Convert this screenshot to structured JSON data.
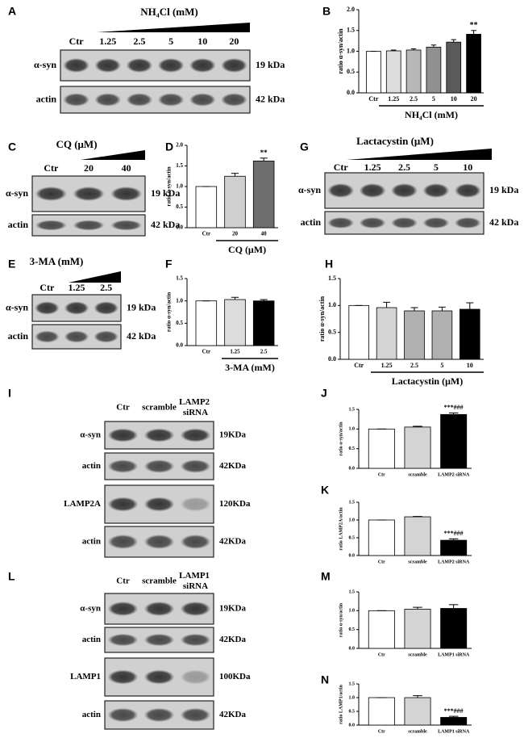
{
  "chart_data": [
    {
      "type": "bar",
      "panel": "B",
      "ylabel": "ratio α-syn/actin",
      "xlabel": "NH₄Cl (mM)",
      "categories": [
        "Ctr",
        "1.25",
        "2.5",
        "5",
        "10",
        "20"
      ],
      "values": [
        1.0,
        1.01,
        1.03,
        1.1,
        1.22,
        1.41
      ],
      "errors": [
        0,
        0.02,
        0.03,
        0.05,
        0.06,
        0.09
      ],
      "colors": [
        "#ffffff",
        "#dcdcdc",
        "#b8b8b8",
        "#909090",
        "#5a5a5a",
        "#000000"
      ],
      "annotation": "**",
      "ylim": [
        0,
        2
      ],
      "yticks": [
        {
          "value": 0,
          "label": "0.0"
        },
        0.5,
        {
          "value": 1,
          "label": "1.0"
        },
        1.5,
        {
          "value": 2,
          "label": "2.0"
        }
      ]
    },
    {
      "type": "bar",
      "panel": "D",
      "ylabel": "ratio α-syn/actin",
      "xlabel": "CQ (μM)",
      "categories": [
        "Ctr",
        "20",
        "40"
      ],
      "values": [
        1.0,
        1.25,
        1.62
      ],
      "errors": [
        0,
        0.07,
        0.07
      ],
      "colors": [
        "#ffffff",
        "#cfcfcf",
        "#6e6e6e"
      ],
      "annotation": "**",
      "ylim": [
        0,
        2
      ],
      "yticks": [
        {
          "value": 0,
          "label": "0.0"
        },
        0.5,
        {
          "value": 1,
          "label": "1.0"
        },
        1.5,
        {
          "value": 2,
          "label": "2.0"
        }
      ]
    },
    {
      "type": "bar",
      "panel": "F",
      "ylabel": "ratio α-syn/actin",
      "xlabel": "3-MA (mM)",
      "categories": [
        "Ctr",
        "1.25",
        "2.5"
      ],
      "values": [
        1.0,
        1.03,
        1.0
      ],
      "errors": [
        0,
        0.05,
        0.03
      ],
      "colors": [
        "#ffffff",
        "#dcdcdc",
        "#000000"
      ],
      "ylim": [
        0,
        1.5
      ],
      "yticks": [
        {
          "value": 0,
          "label": "0.0"
        },
        0.5,
        {
          "value": 1,
          "label": "1.0"
        },
        1.5
      ]
    },
    {
      "type": "bar",
      "panel": "H",
      "ylabel": "ratio α-syn/actin",
      "xlabel": "Lactacystin (μM)",
      "categories": [
        "Ctr",
        "1.25",
        "2.5",
        "5",
        "10"
      ],
      "values": [
        1.0,
        0.96,
        0.9,
        0.9,
        0.93
      ],
      "errors": [
        0,
        0.1,
        0.06,
        0.07,
        0.12
      ],
      "colors": [
        "#ffffff",
        "#d4d4d4",
        "#b0b0b0",
        "#b0b0b0",
        "#000000"
      ],
      "ylim": [
        0,
        1.5
      ],
      "yticks": [
        {
          "value": 0,
          "label": "0.0"
        },
        0.5,
        {
          "value": 1,
          "label": "1.0"
        },
        1.5
      ]
    },
    {
      "type": "bar",
      "panel": "J",
      "ylabel": "ratio α-syn/actin",
      "categories": [
        "Ctr",
        "scramble",
        "LAMP2 siRNA"
      ],
      "values": [
        1.0,
        1.05,
        1.37
      ],
      "errors": [
        0,
        0.02,
        0.04
      ],
      "colors": [
        "#ffffff",
        "#d4d4d4",
        "#000000"
      ],
      "annotation": "***###",
      "ylim": [
        0,
        1.5
      ],
      "yticks": [
        {
          "value": 0,
          "label": "0.0"
        },
        0.5,
        {
          "value": 1,
          "label": "1.0"
        },
        1.5
      ]
    },
    {
      "type": "bar",
      "panel": "K",
      "ylabel": "ratio LAMP2A/actin",
      "categories": [
        "Ctr",
        "scramble",
        "LAMP2 siRNA"
      ],
      "values": [
        1.0,
        1.09,
        0.43
      ],
      "errors": [
        0,
        0.01,
        0.04
      ],
      "colors": [
        "#ffffff",
        "#d4d4d4",
        "#000000"
      ],
      "annotation": "***###",
      "ylim": [
        0,
        1.5
      ],
      "yticks": [
        {
          "value": 0,
          "label": "0.0"
        },
        0.5,
        {
          "value": 1,
          "label": "1.0"
        },
        1.5
      ]
    },
    {
      "type": "bar",
      "panel": "M",
      "ylabel": "ratio α-syn/actin",
      "categories": [
        "Ctr",
        "scramble",
        "LAMP1 siRNA"
      ],
      "values": [
        1.0,
        1.04,
        1.06
      ],
      "errors": [
        0,
        0.05,
        0.1
      ],
      "colors": [
        "#ffffff",
        "#d4d4d4",
        "#000000"
      ],
      "ylim": [
        0,
        1.5
      ],
      "yticks": [
        {
          "value": 0,
          "label": "0.0"
        },
        0.5,
        {
          "value": 1,
          "label": "1.0"
        },
        1.5
      ]
    },
    {
      "type": "bar",
      "panel": "N",
      "ylabel": "ratio LAMP1/actin",
      "categories": [
        "Ctr",
        "scramble",
        "LAMP1 siRNA"
      ],
      "values": [
        1.0,
        1.0,
        0.28
      ],
      "errors": [
        0,
        0.07,
        0.04
      ],
      "colors": [
        "#ffffff",
        "#d4d4d4",
        "#000000"
      ],
      "annotation": "***###",
      "ylim": [
        0,
        1.5
      ],
      "yticks": [
        {
          "value": 0,
          "label": "0.0"
        },
        0.5,
        {
          "value": 1,
          "label": "1.0"
        },
        1.5
      ]
    }
  ],
  "blots": [
    {
      "panel": "A",
      "treatment": "NH₄Cl (mM)",
      "lanes": [
        "Ctr",
        "1.25",
        "2.5",
        "5",
        "10",
        "20"
      ],
      "rows": [
        {
          "protein": "α-syn",
          "size": "19 kDa"
        },
        {
          "protein": "actin",
          "size": "42 kDa"
        }
      ]
    },
    {
      "panel": "C",
      "treatment": "CQ (μM)",
      "lanes": [
        "Ctr",
        "20",
        "40"
      ],
      "rows": [
        {
          "protein": "α-syn",
          "size": "19 kDa"
        },
        {
          "protein": "actin",
          "size": "42 kDa"
        }
      ]
    },
    {
      "panel": "E",
      "treatment": "3-MA (mM)",
      "lanes": [
        "Ctr",
        "1.25",
        "2.5"
      ],
      "rows": [
        {
          "protein": "α-syn",
          "size": "19 kDa"
        },
        {
          "protein": "actin",
          "size": "42 kDa"
        }
      ]
    },
    {
      "panel": "G",
      "treatment": "Lactacystin (μM)",
      "lanes": [
        "Ctr",
        "1.25",
        "2.5",
        "5",
        "10"
      ],
      "rows": [
        {
          "protein": "α-syn",
          "size": "19 kDa"
        },
        {
          "protein": "actin",
          "size": "42 kDa"
        }
      ]
    },
    {
      "panel": "I",
      "lanes": [
        "Ctr",
        "scramble",
        "LAMP2 siRNA"
      ],
      "rows": [
        {
          "protein": "α-syn",
          "size": "19KDa"
        },
        {
          "protein": "actin",
          "size": "42KDa"
        },
        {
          "protein": "LAMP2A",
          "size": "120KDa"
        },
        {
          "protein": "actin",
          "size": "42KDa"
        }
      ]
    },
    {
      "panel": "L",
      "lanes": [
        "Ctr",
        "scramble",
        "LAMP1 siRNA"
      ],
      "rows": [
        {
          "protein": "α-syn",
          "size": "19KDa"
        },
        {
          "protein": "actin",
          "size": "42KDa"
        },
        {
          "protein": "LAMP1",
          "size": "100KDa"
        },
        {
          "protein": "actin",
          "size": "42KDa"
        }
      ]
    }
  ]
}
